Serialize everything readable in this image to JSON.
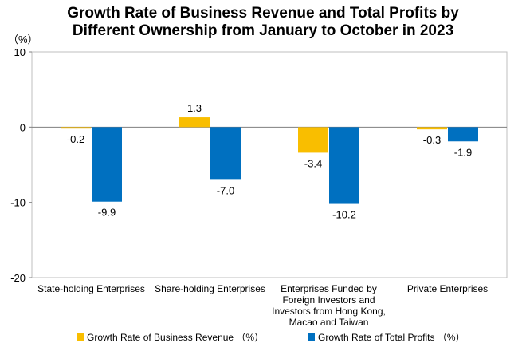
{
  "chart_data": {
    "type": "bar",
    "title_lines": [
      "Growth Rate of Business Revenue and Total Profits by",
      "Different Ownership from January to October in 2023"
    ],
    "unit_label": "（%）",
    "categories": [
      [
        "State-holding Enterprises"
      ],
      [
        "Share-holding Enterprises"
      ],
      [
        "Enterprises Funded by",
        "Foreign Investors and",
        "Investors from Hong Kong,",
        "Macao and Taiwan"
      ],
      [
        "Private Enterprises"
      ]
    ],
    "series": [
      {
        "name": "Growth Rate of Business Revenue （%）",
        "color": "#F9BE00",
        "values": [
          -0.2,
          1.3,
          -3.4,
          -0.3
        ]
      },
      {
        "name": "Growth Rate of Total Profits （%）",
        "color": "#0070C0",
        "values": [
          -9.9,
          -7.0,
          -10.2,
          -1.9
        ]
      }
    ],
    "ylim": [
      -20,
      10
    ],
    "yticks": [
      10,
      0,
      -10,
      -20
    ],
    "grid": false,
    "legend_position": "bottom"
  }
}
